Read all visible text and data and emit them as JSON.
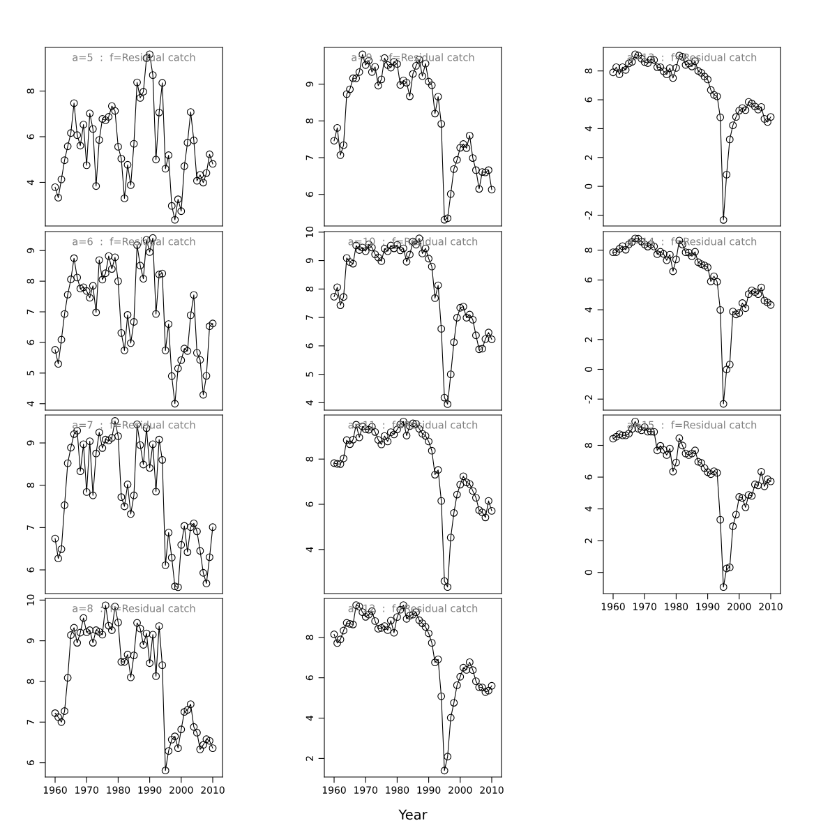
{
  "chart_data": [
    {
      "type": "line",
      "title": "a=5  :  f=Residual catch",
      "marker": "circle",
      "tick_labels": "y",
      "xlim": [
        1956.9,
        2013.1
      ],
      "ylim": [
        2.09,
        9.91
      ],
      "yticks": [
        4,
        6,
        8
      ],
      "x": [
        1960,
        1961,
        1962,
        1963,
        1964,
        1965,
        1966,
        1967,
        1968,
        1969,
        1970,
        1971,
        1972,
        1973,
        1974,
        1975,
        1976,
        1977,
        1978,
        1979,
        1980,
        1981,
        1982,
        1983,
        1984,
        1985,
        1986,
        1987,
        1988,
        1989,
        1990,
        1991,
        1992,
        1993,
        1994,
        1995,
        1996,
        1997,
        1998,
        1999,
        2000,
        2001,
        2002,
        2003,
        2004,
        2005,
        2006,
        2007,
        2008,
        2009,
        2010
      ],
      "series": [
        {
          "color": "#000000",
          "values": [
            3.79,
            3.33,
            4.13,
            4.97,
            5.58,
            6.16,
            7.47,
            6.07,
            5.61,
            6.53,
            4.75,
            7.02,
            6.34,
            3.84,
            5.86,
            6.78,
            6.72,
            6.87,
            7.34,
            7.13,
            5.56,
            5.04,
            3.3,
            4.77,
            3.88,
            5.69,
            8.38,
            7.7,
            7.97,
            9.44,
            9.61,
            8.7,
            5.0,
            7.06,
            8.36,
            4.6,
            5.19,
            2.97,
            2.36,
            3.26,
            2.74,
            4.71,
            5.74,
            7.08,
            5.84,
            4.07,
            4.33,
            3.99,
            4.41,
            5.23,
            4.81
          ]
        }
      ]
    },
    {
      "type": "line",
      "title": "a=6  :  f=Residual catch",
      "marker": "circle",
      "tick_labels": "y",
      "xlim": [
        1956.9,
        2013.1
      ],
      "ylim": [
        3.79,
        9.62
      ],
      "yticks": [
        4,
        5,
        6,
        7,
        8,
        9
      ],
      "x": [
        1960,
        1961,
        1962,
        1963,
        1964,
        1965,
        1966,
        1967,
        1968,
        1969,
        1970,
        1971,
        1972,
        1973,
        1974,
        1975,
        1976,
        1977,
        1978,
        1979,
        1980,
        1981,
        1982,
        1983,
        1984,
        1985,
        1986,
        1987,
        1988,
        1989,
        1990,
        1991,
        1992,
        1993,
        1994,
        1995,
        1996,
        1997,
        1998,
        1999,
        2000,
        2001,
        2002,
        2003,
        2004,
        2005,
        2006,
        2007,
        2008,
        2009,
        2010
      ],
      "series": [
        {
          "color": "#000000",
          "values": [
            5.76,
            5.3,
            6.09,
            6.93,
            7.56,
            8.06,
            8.75,
            8.12,
            7.76,
            7.8,
            7.68,
            7.46,
            7.85,
            6.98,
            8.69,
            8.05,
            8.26,
            8.82,
            8.4,
            8.78,
            8.0,
            6.31,
            5.74,
            6.9,
            5.98,
            6.67,
            9.18,
            8.51,
            8.08,
            9.35,
            8.95,
            9.41,
            6.93,
            8.22,
            8.25,
            5.74,
            6.6,
            4.9,
            4.0,
            5.15,
            5.42,
            5.8,
            5.72,
            6.89,
            7.55,
            5.66,
            5.43,
            4.29,
            4.91,
            6.53,
            6.62
          ]
        }
      ]
    },
    {
      "type": "line",
      "title": "a=7  :  f=Residual catch",
      "marker": "circle",
      "tick_labels": "y",
      "xlim": [
        1956.9,
        2013.1
      ],
      "ylim": [
        5.44,
        9.66
      ],
      "yticks": [
        6,
        7,
        8,
        9
      ],
      "x": [
        1960,
        1961,
        1962,
        1963,
        1964,
        1965,
        1966,
        1967,
        1968,
        1969,
        1970,
        1971,
        1972,
        1973,
        1974,
        1975,
        1976,
        1977,
        1978,
        1979,
        1980,
        1981,
        1982,
        1983,
        1984,
        1985,
        1986,
        1987,
        1988,
        1989,
        1990,
        1991,
        1992,
        1993,
        1994,
        1995,
        1996,
        1997,
        1998,
        1999,
        2000,
        2001,
        2002,
        2003,
        2004,
        2005,
        2006,
        2007,
        2008,
        2009,
        2010
      ],
      "series": [
        {
          "color": "#000000",
          "values": [
            6.74,
            6.27,
            6.49,
            7.53,
            8.52,
            8.89,
            9.21,
            9.29,
            8.33,
            8.97,
            7.84,
            9.04,
            7.76,
            8.75,
            9.25,
            8.88,
            9.08,
            9.06,
            9.12,
            9.52,
            9.16,
            7.72,
            7.5,
            8.02,
            7.32,
            7.76,
            9.44,
            8.95,
            8.49,
            9.35,
            8.41,
            8.97,
            7.85,
            9.08,
            8.6,
            6.11,
            6.88,
            6.29,
            5.61,
            5.59,
            6.59,
            7.04,
            6.42,
            7.01,
            7.1,
            6.91,
            6.45,
            5.93,
            5.68,
            6.3,
            7.01
          ]
        }
      ]
    },
    {
      "type": "line",
      "title": "a=8  :  f=Residual catch",
      "marker": "circle",
      "xlim": [
        1956.9,
        2013.1
      ],
      "xticks": [
        1960,
        1970,
        1980,
        1990,
        2000,
        2010
      ],
      "ylim": [
        5.65,
        10.04
      ],
      "yticks": [
        6,
        7,
        8,
        9,
        10
      ],
      "x": [
        1960,
        1961,
        1962,
        1963,
        1964,
        1965,
        1966,
        1967,
        1968,
        1969,
        1970,
        1971,
        1972,
        1973,
        1974,
        1975,
        1976,
        1977,
        1978,
        1979,
        1980,
        1981,
        1982,
        1983,
        1984,
        1985,
        1986,
        1987,
        1988,
        1989,
        1990,
        1991,
        1992,
        1993,
        1994,
        1995,
        1996,
        1997,
        1998,
        1999,
        2000,
        2001,
        2002,
        2003,
        2004,
        2005,
        2006,
        2007,
        2008,
        2009,
        2010
      ],
      "series": [
        {
          "color": "#000000",
          "values": [
            7.22,
            7.12,
            7.0,
            7.27,
            8.09,
            9.14,
            9.32,
            8.95,
            9.2,
            9.56,
            9.21,
            9.26,
            8.95,
            9.26,
            9.22,
            9.15,
            9.87,
            9.37,
            9.26,
            9.84,
            9.45,
            8.48,
            8.48,
            8.66,
            8.1,
            8.64,
            9.44,
            9.3,
            8.9,
            9.18,
            8.45,
            9.15,
            8.13,
            9.36,
            8.4,
            5.81,
            6.29,
            6.57,
            6.65,
            6.36,
            6.82,
            7.25,
            7.3,
            7.44,
            6.88,
            6.74,
            6.33,
            6.44,
            6.58,
            6.54,
            6.36
          ]
        }
      ]
    },
    {
      "type": "line",
      "title": "a=9  :  f=Residual catch",
      "marker": "circle",
      "tick_labels": "y",
      "xlim": [
        1956.9,
        2013.1
      ],
      "ylim": [
        5.14,
        10.0
      ],
      "yticks": [
        6,
        7,
        8,
        9
      ],
      "x": [
        1960,
        1961,
        1962,
        1963,
        1964,
        1965,
        1966,
        1967,
        1968,
        1969,
        1970,
        1971,
        1972,
        1973,
        1974,
        1975,
        1976,
        1977,
        1978,
        1979,
        1980,
        1981,
        1982,
        1983,
        1984,
        1985,
        1986,
        1987,
        1988,
        1989,
        1990,
        1991,
        1992,
        1993,
        1994,
        1995,
        1996,
        1997,
        1998,
        1999,
        2000,
        2001,
        2002,
        2003,
        2004,
        2005,
        2006,
        2007,
        2008,
        2009,
        2010
      ],
      "series": [
        {
          "color": "#000000",
          "values": [
            7.46,
            7.81,
            7.07,
            7.34,
            8.73,
            8.86,
            9.16,
            9.16,
            9.33,
            9.81,
            9.52,
            9.64,
            9.33,
            9.47,
            8.96,
            9.13,
            9.71,
            9.52,
            9.45,
            9.61,
            9.55,
            8.98,
            9.1,
            9.04,
            8.67,
            9.28,
            9.5,
            9.67,
            9.22,
            9.56,
            9.07,
            8.97,
            8.2,
            8.66,
            7.92,
            5.31,
            5.35,
            6.01,
            6.69,
            6.94,
            7.27,
            7.37,
            7.26,
            7.6,
            6.99,
            6.66,
            6.15,
            6.61,
            6.6,
            6.66,
            6.13
          ]
        }
      ]
    },
    {
      "type": "line",
      "title": "a=10  :  f=Residual catch",
      "marker": "circle",
      "tick_labels": "y",
      "xlim": [
        1956.9,
        2013.1
      ],
      "ylim": [
        3.74,
        10.02
      ],
      "yticks": [
        4,
        5,
        6,
        7,
        8,
        9,
        10
      ],
      "x": [
        1960,
        1961,
        1962,
        1963,
        1964,
        1965,
        1966,
        1967,
        1968,
        1969,
        1970,
        1971,
        1972,
        1973,
        1974,
        1975,
        1976,
        1977,
        1978,
        1979,
        1980,
        1981,
        1982,
        1983,
        1984,
        1985,
        1986,
        1987,
        1988,
        1989,
        1990,
        1991,
        1992,
        1993,
        1994,
        1995,
        1996,
        1997,
        1998,
        1999,
        2000,
        2001,
        2002,
        2003,
        2004,
        2005,
        2006,
        2007,
        2008,
        2009,
        2010
      ],
      "series": [
        {
          "color": "#000000",
          "values": [
            7.73,
            8.06,
            7.43,
            7.72,
            9.09,
            8.95,
            8.89,
            9.53,
            9.37,
            9.46,
            9.33,
            9.57,
            9.46,
            9.22,
            9.11,
            8.98,
            9.42,
            9.33,
            9.53,
            9.43,
            9.55,
            9.36,
            9.43,
            8.96,
            9.21,
            9.67,
            9.56,
            9.78,
            9.25,
            9.43,
            9.07,
            8.79,
            7.68,
            8.13,
            6.6,
            4.18,
            3.95,
            5.0,
            6.13,
            6.99,
            7.34,
            7.38,
            6.99,
            7.1,
            6.92,
            6.37,
            5.88,
            5.9,
            6.24,
            6.47,
            6.23
          ]
        }
      ]
    },
    {
      "type": "line",
      "title": "a=11  :  f=Residual catch",
      "marker": "circle",
      "tick_labels": "y",
      "xlim": [
        1956.9,
        2013.1
      ],
      "ylim": [
        2.05,
        9.95
      ],
      "yticks": [
        4,
        6,
        8
      ],
      "x": [
        1960,
        1961,
        1962,
        1963,
        1964,
        1965,
        1966,
        1967,
        1968,
        1969,
        1970,
        1971,
        1972,
        1973,
        1974,
        1975,
        1976,
        1977,
        1978,
        1979,
        1980,
        1981,
        1982,
        1983,
        1984,
        1985,
        1986,
        1987,
        1988,
        1989,
        1990,
        1991,
        1992,
        1993,
        1994,
        1995,
        1996,
        1997,
        1998,
        1999,
        2000,
        2001,
        2002,
        2003,
        2004,
        2005,
        2006,
        2007,
        2008,
        2009,
        2010
      ],
      "series": [
        {
          "color": "#000000",
          "values": [
            7.82,
            7.79,
            7.78,
            8.03,
            8.84,
            8.66,
            8.86,
            9.52,
            8.96,
            9.44,
            9.32,
            9.3,
            9.43,
            9.2,
            8.85,
            8.65,
            9.02,
            8.78,
            9.19,
            9.09,
            9.31,
            9.53,
            9.66,
            9.04,
            9.46,
            9.58,
            9.56,
            9.34,
            9.12,
            9.03,
            8.78,
            8.37,
            7.31,
            7.52,
            6.15,
            2.6,
            2.34,
            4.53,
            5.62,
            6.43,
            6.87,
            7.24,
            6.97,
            6.9,
            6.59,
            6.29,
            5.74,
            5.64,
            5.42,
            6.15,
            5.71
          ]
        }
      ]
    },
    {
      "type": "line",
      "title": "a=12  :  f=Residual catch",
      "xlabel": "Year",
      "marker": "circle",
      "xlim": [
        1956.9,
        2013.1
      ],
      "xticks": [
        1960,
        1970,
        1980,
        1990,
        2000,
        2010
      ],
      "ylim": [
        1.08,
        9.93
      ],
      "yticks": [
        2,
        4,
        6,
        8
      ],
      "x": [
        1960,
        1961,
        1962,
        1963,
        1964,
        1965,
        1966,
        1967,
        1968,
        1969,
        1970,
        1971,
        1972,
        1973,
        1974,
        1975,
        1976,
        1977,
        1978,
        1979,
        1980,
        1981,
        1982,
        1983,
        1984,
        1985,
        1986,
        1987,
        1988,
        1989,
        1990,
        1991,
        1992,
        1993,
        1994,
        1995,
        1996,
        1997,
        1998,
        1999,
        2000,
        2001,
        2002,
        2003,
        2004,
        2005,
        2006,
        2007,
        2008,
        2009,
        2010
      ],
      "series": [
        {
          "color": "#000000",
          "values": [
            8.15,
            7.72,
            7.9,
            8.34,
            8.72,
            8.67,
            8.64,
            9.6,
            9.53,
            9.25,
            9.02,
            9.13,
            9.3,
            8.81,
            8.43,
            8.47,
            8.56,
            8.36,
            8.83,
            8.23,
            9.01,
            9.37,
            9.6,
            8.92,
            9.08,
            9.13,
            9.25,
            8.85,
            8.7,
            8.52,
            8.2,
            7.73,
            6.76,
            6.91,
            5.08,
            1.4,
            2.09,
            4.02,
            4.76,
            5.63,
            6.05,
            6.5,
            6.39,
            6.77,
            6.38,
            5.83,
            5.53,
            5.52,
            5.29,
            5.36,
            5.6
          ]
        }
      ]
    },
    {
      "type": "line",
      "title": "a=13  :  f=Residual catch",
      "marker": "circle",
      "tick_labels": "y",
      "xlim": [
        1956.9,
        2013.1
      ],
      "ylim": [
        -2.75,
        9.63
      ],
      "yticks": [
        -2,
        0,
        2,
        4,
        6,
        8
      ],
      "x": [
        1960,
        1961,
        1962,
        1963,
        1964,
        1965,
        1966,
        1967,
        1968,
        1969,
        1970,
        1971,
        1972,
        1973,
        1974,
        1975,
        1976,
        1977,
        1978,
        1979,
        1980,
        1981,
        1982,
        1983,
        1984,
        1985,
        1986,
        1987,
        1988,
        1989,
        1990,
        1991,
        1992,
        1993,
        1994,
        1995,
        1996,
        1997,
        1998,
        1999,
        2000,
        2001,
        2002,
        2003,
        2004,
        2005,
        2006,
        2007,
        2008,
        2009,
        2010
      ],
      "series": [
        {
          "color": "#000000",
          "values": [
            7.9,
            8.26,
            7.77,
            8.26,
            8.07,
            8.52,
            8.63,
            9.15,
            9.07,
            8.85,
            8.62,
            8.54,
            8.8,
            8.76,
            8.26,
            8.26,
            7.98,
            7.76,
            8.2,
            7.51,
            8.21,
            9.06,
            8.98,
            8.42,
            8.52,
            8.31,
            8.68,
            8.0,
            7.87,
            7.61,
            7.41,
            6.68,
            6.34,
            6.24,
            4.78,
            -2.33,
            0.81,
            3.25,
            4.23,
            4.81,
            5.25,
            5.43,
            5.28,
            5.85,
            5.74,
            5.53,
            5.32,
            5.5,
            4.68,
            4.46,
            4.81
          ]
        }
      ]
    },
    {
      "type": "line",
      "title": "a=14  :  f=Residual catch",
      "marker": "circle",
      "tick_labels": "y",
      "xlim": [
        1956.9,
        2013.1
      ],
      "ylim": [
        -2.74,
        9.25
      ],
      "yticks": [
        -2,
        0,
        2,
        4,
        6,
        8
      ],
      "x": [
        1960,
        1961,
        1962,
        1963,
        1964,
        1965,
        1966,
        1967,
        1968,
        1969,
        1970,
        1971,
        1972,
        1973,
        1974,
        1975,
        1976,
        1977,
        1978,
        1979,
        1980,
        1981,
        1982,
        1983,
        1984,
        1985,
        1986,
        1987,
        1988,
        1989,
        1990,
        1991,
        1992,
        1993,
        1994,
        1995,
        1996,
        1997,
        1998,
        1999,
        2000,
        2001,
        2002,
        2003,
        2004,
        2005,
        2006,
        2007,
        2008,
        2009,
        2010
      ],
      "series": [
        {
          "color": "#000000",
          "values": [
            7.86,
            7.87,
            8.09,
            8.27,
            8.03,
            8.39,
            8.55,
            8.79,
            8.77,
            8.58,
            8.39,
            8.24,
            8.39,
            8.25,
            7.73,
            7.89,
            7.75,
            7.32,
            7.7,
            6.58,
            7.38,
            8.65,
            8.38,
            7.86,
            7.84,
            7.59,
            7.89,
            7.19,
            7.07,
            6.97,
            6.85,
            5.9,
            6.25,
            5.88,
            3.99,
            -2.32,
            -0.01,
            0.32,
            3.88,
            3.69,
            3.78,
            4.45,
            4.11,
            5.05,
            5.3,
            5.19,
            5.05,
            5.5,
            4.62,
            4.49,
            4.32
          ]
        }
      ]
    },
    {
      "type": "line",
      "title": "a=15  :  f=Residual catch",
      "marker": "circle",
      "xlim": [
        1956.9,
        2013.1
      ],
      "xticks": [
        1960,
        1970,
        1980,
        1990,
        2000,
        2010
      ],
      "ylim": [
        -1.33,
        9.91
      ],
      "yticks": [
        0,
        2,
        4,
        6,
        8
      ],
      "x": [
        1960,
        1961,
        1962,
        1963,
        1964,
        1965,
        1966,
        1967,
        1968,
        1969,
        1970,
        1971,
        1972,
        1973,
        1974,
        1975,
        1976,
        1977,
        1978,
        1979,
        1980,
        1981,
        1982,
        1983,
        1984,
        1985,
        1986,
        1987,
        1988,
        1989,
        1990,
        1991,
        1992,
        1993,
        1994,
        1995,
        1996,
        1997,
        1998,
        1999,
        2000,
        2001,
        2002,
        2003,
        2004,
        2005,
        2006,
        2007,
        2008,
        2009,
        2010
      ],
      "series": [
        {
          "color": "#000000",
          "values": [
            8.42,
            8.54,
            8.7,
            8.63,
            8.63,
            8.74,
            9.03,
            9.5,
            9.05,
            8.95,
            9.15,
            8.86,
            8.86,
            8.85,
            7.68,
            7.97,
            7.72,
            7.39,
            7.8,
            6.35,
            6.92,
            8.45,
            7.99,
            7.49,
            7.39,
            7.49,
            7.68,
            6.97,
            6.89,
            6.57,
            6.31,
            6.19,
            6.37,
            6.27,
            3.32,
            -0.92,
            0.25,
            0.32,
            2.91,
            3.64,
            4.75,
            4.69,
            4.1,
            4.88,
            4.82,
            5.54,
            5.48,
            6.34,
            5.42,
            5.87,
            5.73
          ]
        }
      ]
    }
  ]
}
